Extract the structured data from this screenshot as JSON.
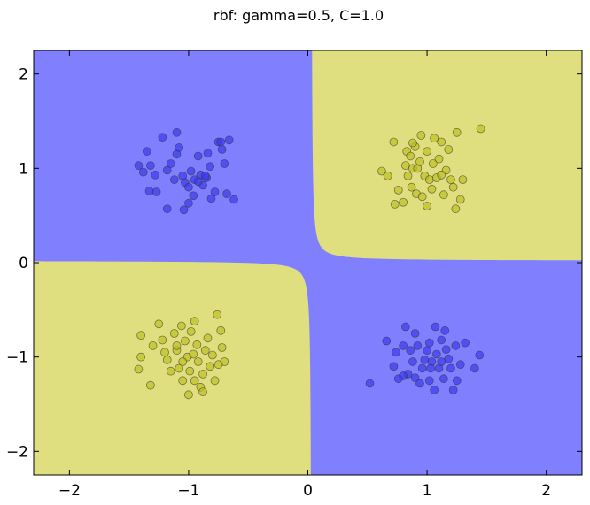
{
  "chart_data": {
    "type": "scatter",
    "title": "rbf: gamma=0.5, C=1.0",
    "xlim": [
      -2.3,
      2.3
    ],
    "ylim": [
      -2.25,
      2.25
    ],
    "x_ticks": [
      -2,
      -1,
      0,
      1,
      2
    ],
    "y_ticks": [
      -2,
      -1,
      0,
      1,
      2
    ],
    "x_tick_labels": [
      "−2",
      "−1",
      "0",
      "1",
      "2"
    ],
    "y_tick_labels": [
      "−2",
      "−1",
      "0",
      "1",
      "2"
    ],
    "grid": false,
    "legend": false,
    "colors": {
      "region_blue": "#8080ff",
      "region_yellow": "#dfdf80",
      "point_blue": "#3b3bf0",
      "point_yellow": "#bfbf22",
      "point_edge": "#333333"
    },
    "decision_regions": {
      "class_0_color": "region_blue",
      "class_1_color": "region_yellow",
      "boundary_sign_rule": "x*y > 0 -> class_1 (yellow); x*y < 0 -> class_0 (blue)"
    },
    "series": [
      {
        "class": 0,
        "color": "point_blue",
        "points": [
          [
            -1.42,
            1.03
          ],
          [
            -1.38,
            0.96
          ],
          [
            -1.35,
            1.18
          ],
          [
            -1.28,
            0.93
          ],
          [
            -1.27,
            0.75
          ],
          [
            -1.33,
            0.76
          ],
          [
            -1.22,
            1.33
          ],
          [
            -1.18,
            0.98
          ],
          [
            -1.15,
            1.05
          ],
          [
            -1.12,
            0.88
          ],
          [
            -1.1,
            1.15
          ],
          [
            -1.08,
            1.22
          ],
          [
            -1.05,
            0.92
          ],
          [
            -1.03,
            0.85
          ],
          [
            -1.0,
            0.8
          ],
          [
            -0.98,
            0.97
          ],
          [
            -0.95,
            0.88
          ],
          [
            -0.92,
            1.13
          ],
          [
            -0.9,
            0.93
          ],
          [
            -0.88,
            0.82
          ],
          [
            -0.85,
            0.9
          ],
          [
            -0.82,
            1.02
          ],
          [
            -0.78,
            0.75
          ],
          [
            -0.75,
            1.28
          ],
          [
            -0.72,
            1.2
          ],
          [
            -0.7,
            1.05
          ],
          [
            -0.68,
            0.73
          ],
          [
            -0.66,
            1.3
          ],
          [
            -0.62,
            0.67
          ],
          [
            -1.18,
            0.57
          ],
          [
            -1.04,
            0.56
          ],
          [
            -1.1,
            1.38
          ],
          [
            -0.92,
            0.86
          ],
          [
            -0.84,
            1.16
          ],
          [
            -0.73,
            1.28
          ],
          [
            -1.32,
            1.03
          ],
          [
            -0.96,
            0.71
          ],
          [
            -0.86,
            0.92
          ],
          [
            -1.0,
            0.63
          ],
          [
            -0.81,
            0.68
          ],
          [
            0.52,
            -1.28
          ],
          [
            0.72,
            -1.1
          ],
          [
            0.74,
            -0.95
          ],
          [
            0.76,
            -1.23
          ],
          [
            0.8,
            -0.88
          ],
          [
            0.82,
            -0.68
          ],
          [
            0.84,
            -1.18
          ],
          [
            0.86,
            -0.93
          ],
          [
            0.88,
            -1.05
          ],
          [
            0.9,
            -1.22
          ],
          [
            0.92,
            -0.88
          ],
          [
            0.94,
            -1.28
          ],
          [
            0.96,
            -1.12
          ],
          [
            0.98,
            -1.03
          ],
          [
            1.0,
            -0.93
          ],
          [
            1.02,
            -0.85
          ],
          [
            1.04,
            -1.05
          ],
          [
            1.06,
            -1.35
          ],
          [
            1.07,
            -0.68
          ],
          [
            1.08,
            -0.97
          ],
          [
            1.1,
            -1.12
          ],
          [
            1.12,
            -0.82
          ],
          [
            1.14,
            -1.23
          ],
          [
            1.16,
            -0.92
          ],
          [
            1.18,
            -1.02
          ],
          [
            1.2,
            -1.12
          ],
          [
            1.22,
            -1.35
          ],
          [
            1.24,
            -0.88
          ],
          [
            1.28,
            -1.08
          ],
          [
            1.32,
            -0.85
          ],
          [
            1.4,
            -1.12
          ],
          [
            1.44,
            -0.98
          ],
          [
            1.02,
            -1.25
          ],
          [
            1.12,
            -1.05
          ],
          [
            0.66,
            -0.83
          ],
          [
            0.9,
            -0.75
          ],
          [
            1.15,
            -0.72
          ],
          [
            1.03,
            -1.12
          ],
          [
            1.25,
            -1.25
          ],
          [
            0.8,
            -1.2
          ]
        ]
      },
      {
        "class": 1,
        "color": "point_yellow",
        "points": [
          [
            0.62,
            0.97
          ],
          [
            0.67,
            0.92
          ],
          [
            0.72,
            1.28
          ],
          [
            0.73,
            0.62
          ],
          [
            0.76,
            0.77
          ],
          [
            0.8,
            0.64
          ],
          [
            0.82,
            1.03
          ],
          [
            0.83,
            1.18
          ],
          [
            0.84,
            0.92
          ],
          [
            0.86,
            1.13
          ],
          [
            0.87,
            0.8
          ],
          [
            0.88,
            1.0
          ],
          [
            0.9,
            1.23
          ],
          [
            0.91,
            0.73
          ],
          [
            0.92,
            1.0
          ],
          [
            0.94,
            1.07
          ],
          [
            0.96,
            0.7
          ],
          [
            0.98,
            0.92
          ],
          [
            1.0,
            1.18
          ],
          [
            1.02,
            0.88
          ],
          [
            1.04,
            0.78
          ],
          [
            1.05,
            1.05
          ],
          [
            1.06,
            1.32
          ],
          [
            1.08,
            0.9
          ],
          [
            1.1,
            1.1
          ],
          [
            1.12,
            1.28
          ],
          [
            1.14,
            0.72
          ],
          [
            1.16,
            0.98
          ],
          [
            1.18,
            1.2
          ],
          [
            1.2,
            0.88
          ],
          [
            1.22,
            0.8
          ],
          [
            1.24,
            0.57
          ],
          [
            1.25,
            1.38
          ],
          [
            1.28,
            0.67
          ],
          [
            1.3,
            0.88
          ],
          [
            1.45,
            1.42
          ],
          [
            0.95,
            1.35
          ],
          [
            1.0,
            0.6
          ],
          [
            1.12,
            0.93
          ],
          [
            0.88,
            1.27
          ],
          [
            -1.4,
            -0.77
          ],
          [
            -1.4,
            -1.0
          ],
          [
            -1.42,
            -1.13
          ],
          [
            -1.32,
            -1.3
          ],
          [
            -1.25,
            -0.65
          ],
          [
            -1.22,
            -0.82
          ],
          [
            -1.18,
            -1.03
          ],
          [
            -1.15,
            -1.15
          ],
          [
            -1.12,
            -0.75
          ],
          [
            -1.1,
            -0.93
          ],
          [
            -1.08,
            -1.12
          ],
          [
            -1.06,
            -0.67
          ],
          [
            -1.05,
            -1.25
          ],
          [
            -1.03,
            -0.83
          ],
          [
            -1.01,
            -1.0
          ],
          [
            -0.99,
            -1.15
          ],
          [
            -0.98,
            -0.73
          ],
          [
            -0.96,
            -0.97
          ],
          [
            -0.95,
            -1.25
          ],
          [
            -0.93,
            -0.87
          ],
          [
            -0.92,
            -1.05
          ],
          [
            -0.9,
            -1.32
          ],
          [
            -0.88,
            -1.37
          ],
          [
            -0.86,
            -0.93
          ],
          [
            -0.84,
            -0.8
          ],
          [
            -0.82,
            -1.1
          ],
          [
            -0.8,
            -0.98
          ],
          [
            -0.78,
            -1.25
          ],
          [
            -0.76,
            -0.55
          ],
          [
            -0.73,
            -0.72
          ],
          [
            -0.72,
            -0.9
          ],
          [
            -0.7,
            -1.05
          ],
          [
            -1.0,
            -1.4
          ],
          [
            -1.1,
            -0.88
          ],
          [
            -1.2,
            -0.95
          ],
          [
            -0.75,
            -1.08
          ],
          [
            -1.3,
            -0.88
          ],
          [
            -0.95,
            -0.62
          ],
          [
            -1.05,
            -1.05
          ],
          [
            -0.88,
            -1.18
          ]
        ]
      }
    ]
  }
}
